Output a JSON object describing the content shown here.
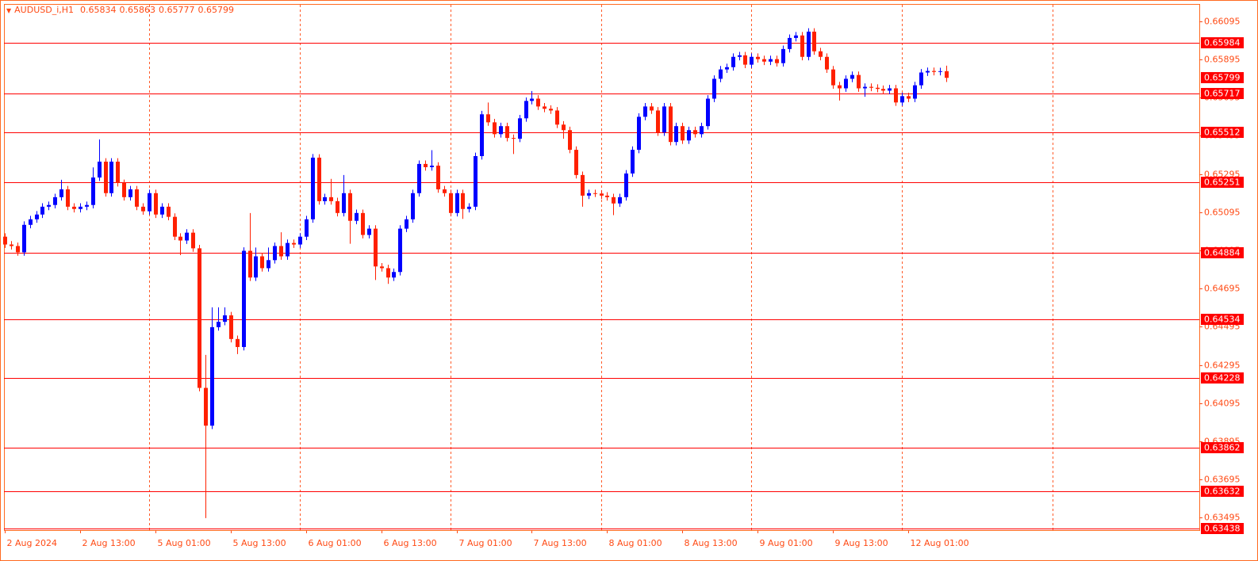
{
  "chart_data": {
    "type": "candlestick",
    "symbol": "AUDUSD_i,H1",
    "up_color": "#0000ff",
    "down_color": "#ff2000",
    "level_color": "#ff0000",
    "grid_color": "#ff5a28",
    "text_color": "#ff4a14",
    "open": [
      0.64967,
      0.64926,
      0.64918,
      0.64885,
      0.65029,
      0.65058,
      0.65083,
      0.65124,
      0.65133,
      0.65174,
      0.65215,
      0.65124,
      0.65112,
      0.65124,
      0.65133,
      0.65277,
      0.6536,
      0.65195,
      0.6536,
      0.65248,
      0.65174,
      0.65215,
      0.65124,
      0.651,
      0.65195,
      0.65083,
      0.65124,
      0.65071,
      0.64967,
      0.64947,
      0.64988,
      0.64906,
      0.64175,
      0.63977,
      0.64493,
      0.64521,
      0.64555,
      0.64431,
      0.64389,
      0.64893,
      0.64753,
      0.64864,
      0.64802,
      0.64844,
      0.64918,
      0.64864,
      0.64934,
      0.64926,
      0.64967,
      0.65058,
      0.65381,
      0.65153,
      0.65174,
      0.65153,
      0.65091,
      0.65195,
      0.6505,
      0.65091,
      0.64976,
      0.65009,
      0.64811,
      0.64802,
      0.64753,
      0.64782,
      0.65009,
      0.65058,
      0.65195,
      0.65348,
      0.65331,
      0.65339,
      0.65215,
      0.65195,
      0.65091,
      0.65195,
      0.65112,
      0.65124,
      0.65389,
      0.65608,
      0.65566,
      0.65504,
      0.65546,
      0.65484,
      0.6548,
      0.65587,
      0.65678,
      0.6569,
      0.65649,
      0.65637,
      0.65628,
      0.65554,
      0.65525,
      0.65422,
      0.6529,
      0.65182,
      0.65195,
      0.65193,
      0.65182,
      0.65174,
      0.65141,
      0.65174,
      0.65298,
      0.65422,
      0.65595,
      0.65649,
      0.65628,
      0.65513,
      0.65649,
      0.65463,
      0.65546,
      0.65471,
      0.65525,
      0.65504,
      0.65546,
      0.6569,
      0.65794,
      0.65843,
      0.65855,
      0.65909,
      0.65917,
      0.65868,
      0.65909,
      0.65897,
      0.65884,
      0.65897,
      0.65876,
      0.6595,
      0.66008,
      0.66021,
      0.65909,
      0.66041,
      0.65938,
      0.65909,
      0.65843,
      0.6576,
      0.65744,
      0.65794,
      0.65814,
      0.65744,
      0.65752,
      0.65747,
      0.65741,
      0.65732,
      0.65744,
      0.6567,
      0.65703,
      0.6569,
      0.6576,
      0.65827,
      0.65835,
      0.6583,
      0.65834
    ],
    "high": [
      0.64985,
      0.64944,
      0.64936,
      0.65047,
      0.65076,
      0.65101,
      0.65142,
      0.65151,
      0.65192,
      0.65265,
      0.65233,
      0.65142,
      0.65142,
      0.65151,
      0.6533,
      0.65476,
      0.65378,
      0.65378,
      0.65378,
      0.65266,
      0.65233,
      0.65233,
      0.65142,
      0.65213,
      0.65213,
      0.65142,
      0.65142,
      0.65089,
      0.64985,
      0.65006,
      0.65006,
      0.64924,
      0.64348,
      0.64597,
      0.64597,
      0.64597,
      0.64573,
      0.64449,
      0.64911,
      0.65091,
      0.6491,
      0.64882,
      0.6491,
      0.64936,
      0.6499,
      0.64952,
      0.64952,
      0.64985,
      0.65076,
      0.654,
      0.65399,
      0.65192,
      0.6527,
      0.65171,
      0.6529,
      0.65213,
      0.65109,
      0.65109,
      0.65027,
      0.65027,
      0.64829,
      0.6482,
      0.648,
      0.65027,
      0.65076,
      0.65213,
      0.65366,
      0.65366,
      0.6542,
      0.65357,
      0.65233,
      0.65213,
      0.65213,
      0.65213,
      0.65142,
      0.65407,
      0.65626,
      0.6567,
      0.65584,
      0.65564,
      0.65564,
      0.65502,
      0.65605,
      0.65696,
      0.6573,
      0.65708,
      0.65667,
      0.65655,
      0.65646,
      0.65572,
      0.65543,
      0.6544,
      0.65308,
      0.65213,
      0.65213,
      0.65211,
      0.652,
      0.65192,
      0.65192,
      0.65316,
      0.6544,
      0.65613,
      0.65667,
      0.65667,
      0.65646,
      0.65667,
      0.65667,
      0.65564,
      0.65564,
      0.65543,
      0.65543,
      0.65564,
      0.65708,
      0.65812,
      0.65861,
      0.65873,
      0.65927,
      0.65935,
      0.65935,
      0.65927,
      0.65927,
      0.65915,
      0.65915,
      0.65915,
      0.65968,
      0.66026,
      0.66039,
      0.66039,
      0.66059,
      0.66059,
      0.65956,
      0.65927,
      0.65861,
      0.65778,
      0.65812,
      0.65832,
      0.65832,
      0.6577,
      0.6577,
      0.65765,
      0.65759,
      0.65762,
      0.65762,
      0.65721,
      0.65721,
      0.65778,
      0.65845,
      0.65853,
      0.65853,
      0.65852,
      0.65863
    ],
    "low": [
      0.64908,
      0.649,
      0.64867,
      0.64867,
      0.65011,
      0.6504,
      0.65065,
      0.65106,
      0.65115,
      0.65156,
      0.65106,
      0.65094,
      0.65094,
      0.65106,
      0.65115,
      0.65259,
      0.65177,
      0.65177,
      0.6523,
      0.65156,
      0.65156,
      0.65106,
      0.65082,
      0.65082,
      0.65065,
      0.65065,
      0.65053,
      0.64949,
      0.6487,
      0.64929,
      0.64888,
      0.64157,
      0.63493,
      0.63959,
      0.64475,
      0.64503,
      0.64413,
      0.64352,
      0.64371,
      0.64735,
      0.64735,
      0.64784,
      0.64784,
      0.64826,
      0.64846,
      0.64846,
      0.64908,
      0.64908,
      0.64949,
      0.6504,
      0.65135,
      0.65135,
      0.65135,
      0.65073,
      0.65073,
      0.6493,
      0.65032,
      0.64958,
      0.64958,
      0.6474,
      0.64784,
      0.6472,
      0.64735,
      0.64764,
      0.64991,
      0.6504,
      0.65177,
      0.65313,
      0.65313,
      0.65197,
      0.65177,
      0.65073,
      0.65073,
      0.6506,
      0.65094,
      0.65106,
      0.65371,
      0.65548,
      0.65486,
      0.65486,
      0.65466,
      0.654,
      0.65462,
      0.65569,
      0.6566,
      0.65631,
      0.65619,
      0.6561,
      0.65536,
      0.6548,
      0.65404,
      0.65272,
      0.65124,
      0.65164,
      0.65175,
      0.65164,
      0.65156,
      0.6508,
      0.65123,
      0.65156,
      0.6528,
      0.65404,
      0.65577,
      0.6561,
      0.65495,
      0.65495,
      0.65445,
      0.65445,
      0.65453,
      0.65453,
      0.65486,
      0.65486,
      0.65528,
      0.65672,
      0.65776,
      0.65825,
      0.65837,
      0.65891,
      0.6585,
      0.6585,
      0.65879,
      0.65866,
      0.65866,
      0.65858,
      0.65858,
      0.65932,
      0.6599,
      0.65891,
      0.65891,
      0.6592,
      0.65891,
      0.65825,
      0.65742,
      0.6568,
      0.65726,
      0.65776,
      0.65726,
      0.657,
      0.65729,
      0.65723,
      0.65714,
      0.65714,
      0.65652,
      0.65652,
      0.65672,
      0.65672,
      0.65742,
      0.65809,
      0.65812,
      0.65812,
      0.65777
    ],
    "close": [
      0.64926,
      0.64918,
      0.64885,
      0.65029,
      0.65058,
      0.65083,
      0.65124,
      0.65133,
      0.65174,
      0.65215,
      0.65124,
      0.65112,
      0.65124,
      0.65133,
      0.65277,
      0.6536,
      0.65195,
      0.6536,
      0.65248,
      0.65174,
      0.65215,
      0.65124,
      0.651,
      0.65195,
      0.65083,
      0.65124,
      0.65071,
      0.64967,
      0.64947,
      0.64988,
      0.64906,
      0.64175,
      0.63977,
      0.64493,
      0.64521,
      0.64555,
      0.64431,
      0.64389,
      0.64893,
      0.64753,
      0.64864,
      0.64802,
      0.64844,
      0.64918,
      0.64864,
      0.64934,
      0.64926,
      0.64967,
      0.65058,
      0.65381,
      0.65153,
      0.65174,
      0.65153,
      0.65091,
      0.65195,
      0.6505,
      0.65091,
      0.64976,
      0.65009,
      0.64811,
      0.64802,
      0.64753,
      0.64782,
      0.65009,
      0.65058,
      0.65195,
      0.65348,
      0.65331,
      0.65339,
      0.65215,
      0.65195,
      0.65091,
      0.65195,
      0.65112,
      0.65124,
      0.65389,
      0.65608,
      0.65566,
      0.65504,
      0.65546,
      0.65484,
      0.6548,
      0.65587,
      0.65678,
      0.6569,
      0.65649,
      0.65637,
      0.65628,
      0.65554,
      0.65525,
      0.65422,
      0.6529,
      0.65182,
      0.65195,
      0.65193,
      0.65182,
      0.65174,
      0.65141,
      0.65174,
      0.65298,
      0.65422,
      0.65595,
      0.65649,
      0.65628,
      0.65513,
      0.65649,
      0.65463,
      0.65546,
      0.65471,
      0.65525,
      0.65504,
      0.65546,
      0.6569,
      0.65794,
      0.65843,
      0.65855,
      0.65909,
      0.65917,
      0.65868,
      0.65909,
      0.65897,
      0.65884,
      0.65897,
      0.65876,
      0.6595,
      0.66008,
      0.66021,
      0.65909,
      0.66041,
      0.65938,
      0.65909,
      0.65843,
      0.6576,
      0.65744,
      0.65794,
      0.65814,
      0.65744,
      0.65752,
      0.65747,
      0.65741,
      0.65732,
      0.65744,
      0.6567,
      0.65703,
      0.6569,
      0.6576,
      0.65827,
      0.65835,
      0.6583,
      0.65834,
      0.65799
    ],
    "xlim": [
      0,
      190
    ],
    "xticks": [
      {
        "value": 0,
        "label": "2 Aug 2024"
      },
      {
        "value": 12,
        "label": "2 Aug 13:00"
      },
      {
        "value": 24,
        "label": "5 Aug 01:00"
      },
      {
        "value": 36,
        "label": "5 Aug 13:00"
      },
      {
        "value": 48,
        "label": "6 Aug 01:00"
      },
      {
        "value": 60,
        "label": "6 Aug 13:00"
      },
      {
        "value": 72,
        "label": "7 Aug 01:00"
      },
      {
        "value": 84,
        "label": "7 Aug 13:00"
      },
      {
        "value": 96,
        "label": "8 Aug 01:00"
      },
      {
        "value": 108,
        "label": "8 Aug 13:00"
      },
      {
        "value": 120,
        "label": "9 Aug 01:00"
      },
      {
        "value": 132,
        "label": "9 Aug 13:00"
      },
      {
        "value": 144,
        "label": "12 Aug 01:00"
      }
    ],
    "vgrid": [
      23,
      47,
      71,
      95,
      119,
      143,
      167
    ],
    "ylim": [
      0.6343,
      0.66186
    ],
    "yticks": [
      0.66095,
      0.65895,
      0.65695,
      0.65495,
      0.65295,
      0.65095,
      0.64895,
      0.64695,
      0.64495,
      0.64295,
      0.64095,
      0.63895,
      0.63695,
      0.63495
    ],
    "levels": [
      0.65984,
      0.65717,
      0.65512,
      0.65251,
      0.64884,
      0.64534,
      0.64228,
      0.63862,
      0.63632,
      0.63438
    ]
  }
}
